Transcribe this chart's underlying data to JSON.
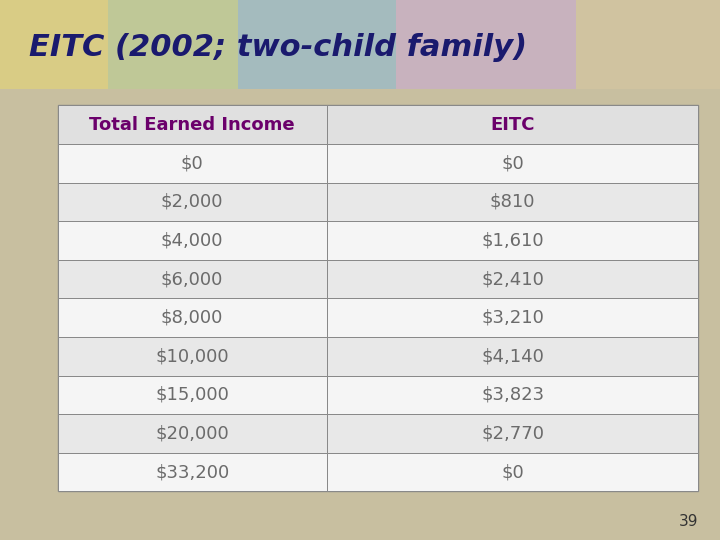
{
  "title": "EITC (2002; two-child family)",
  "title_color": "#1a1a6e",
  "title_fontsize": 22,
  "background_color": "#c8bfa0",
  "left_strip_color": "#c8bfa0",
  "top_bar_color": "#d4c9a8",
  "header_col1": "Total Earned Income",
  "header_col2": "EITC",
  "header_color": "#6b006b",
  "header_fontsize": 13,
  "header_bold": true,
  "data_col1": [
    "$0",
    "$2,000",
    "$4,000",
    "$6,000",
    "$8,000",
    "$10,000",
    "$15,000",
    "$20,000",
    "$33,200"
  ],
  "data_col2": [
    "$0",
    "$810",
    "$1,610",
    "$2,410",
    "$3,210",
    "$4,140",
    "$3,823",
    "$2,770",
    "$0"
  ],
  "data_fontsize": 13,
  "data_color": "#6b6b6b",
  "row_colors_odd": "#f5f5f5",
  "row_colors_even": "#e8e8e8",
  "header_row_color": "#e0e0e0",
  "border_color": "#888888",
  "table_bg": "#f0f0f0",
  "page_number": "39",
  "page_num_fontsize": 11,
  "page_num_color": "#333333",
  "col_split": 0.42
}
